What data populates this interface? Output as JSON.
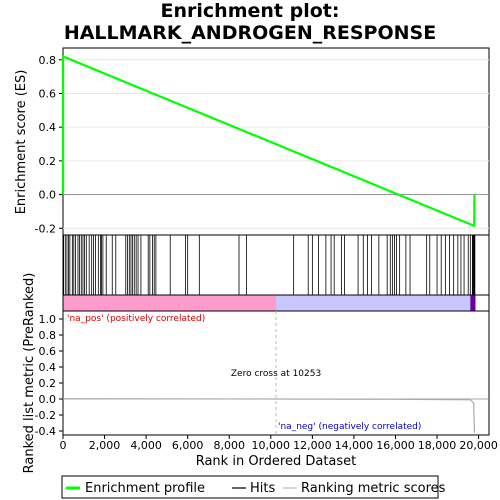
{
  "title_line1": "Enrichment plot:",
  "title_line2": "HALLMARK_ANDROGEN_RESPONSE",
  "chart_data": {
    "type": "line",
    "xlabel": "Rank in Ordered Dataset",
    "es_ylabel": "Enrichment score (ES)",
    "metric_ylabel": "Ranked list metric (PreRanked)",
    "x_ticks": [
      0,
      2000,
      4000,
      6000,
      8000,
      10000,
      12000,
      14000,
      16000,
      18000,
      20000
    ],
    "x_tick_labels": [
      "0",
      "2,000",
      "4,000",
      "6,000",
      "8,000",
      "10,000",
      "12,000",
      "14,000",
      "16,000",
      "18,000",
      "20,000"
    ],
    "xlim": [
      0,
      20500
    ],
    "es_ylim": [
      -0.24,
      0.87
    ],
    "es_y_ticks": [
      -0.2,
      0.0,
      0.2,
      0.4,
      0.6,
      0.8
    ],
    "es_y_tick_labels": [
      "-0.2",
      "0.0",
      "0.2",
      "0.4",
      "0.6",
      "0.8"
    ],
    "metric_ylim": [
      -0.45,
      1.1
    ],
    "metric_y_ticks": [
      -0.4,
      -0.2,
      0.0,
      0.2,
      0.4,
      0.6,
      0.8,
      1.0
    ],
    "metric_y_tick_labels": [
      "-0.4",
      "-0.2",
      "0.0",
      "0.2",
      "0.4",
      "0.6",
      "0.8",
      "1.0"
    ],
    "enrichment_profile": {
      "x": [
        0,
        1,
        19780,
        19790,
        19800
      ],
      "y": [
        0.0,
        0.82,
        -0.185,
        -0.18,
        0.0
      ]
    },
    "hits": [
      30,
      110,
      190,
      260,
      330,
      450,
      520,
      600,
      720,
      790,
      880,
      960,
      1040,
      1120,
      1260,
      1380,
      1470,
      1560,
      1700,
      1800,
      1850,
      1920,
      2080,
      2370,
      2540,
      3020,
      3100,
      3190,
      3270,
      3350,
      3430,
      3520,
      3610,
      3750,
      4100,
      4180,
      4310,
      4390,
      4470,
      5160,
      5900,
      6000,
      6560,
      8470,
      8830,
      11100,
      11800,
      12000,
      12300,
      12650,
      12900,
      13050,
      13400,
      13550,
      14200,
      14450,
      14650,
      14850,
      15200,
      15600,
      15750,
      15850,
      15950,
      16050,
      16200,
      16500,
      16700,
      17500,
      17650,
      18000,
      18200,
      18400,
      18600,
      18800,
      19000,
      19150,
      19300,
      19500,
      19600,
      19700,
      19730,
      19760,
      19790,
      19820
    ],
    "metric_profile": {
      "x": [
        0,
        8000,
        10253,
        16000,
        19600,
        19760,
        19800
      ],
      "y": [
        0.003,
        0.001,
        0.0,
        -0.003,
        -0.01,
        -0.05,
        -0.42
      ]
    },
    "zero_cross": 10253,
    "zero_cross_label": "Zero cross at 10253",
    "pos_label": "'na_pos' (positively correlated)",
    "neg_label": "'na_neg' (negatively correlated)",
    "legend": [
      "Enrichment profile",
      "Hits",
      "Ranking metric scores"
    ],
    "colors": {
      "profile": "#00ff00",
      "hits": "#000000",
      "metric": "#aaaaaa",
      "pos": "#ff9ccd",
      "neg": "#c8c8ff",
      "pos_text": "#d00000",
      "neg_text": "#0000c0",
      "end_marker": "#6a00a0"
    }
  }
}
